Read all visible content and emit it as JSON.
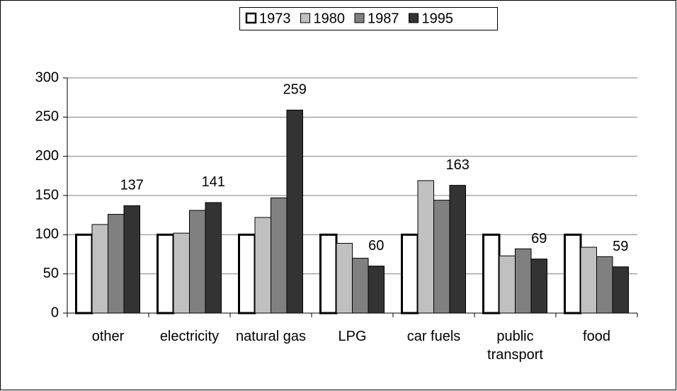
{
  "chart_data": {
    "type": "bar",
    "categories": [
      "other",
      "electricity",
      "natural gas",
      "LPG",
      "car fuels",
      "public transport",
      "food"
    ],
    "series": [
      {
        "name": "1973",
        "color": "#ffffff",
        "values": [
          100,
          100,
          100,
          100,
          100,
          100,
          100
        ]
      },
      {
        "name": "1980",
        "color": "#c0c0c0",
        "values": [
          113,
          102,
          122,
          89,
          169,
          73,
          84
        ]
      },
      {
        "name": "1987",
        "color": "#808080",
        "values": [
          126,
          131,
          147,
          70,
          144,
          82,
          72
        ]
      },
      {
        "name": "1995",
        "color": "#333333",
        "values": [
          137,
          141,
          259,
          60,
          163,
          69,
          59
        ],
        "labels": true
      }
    ],
    "ylim": [
      0,
      300
    ],
    "yticks": [
      0,
      50,
      100,
      150,
      200,
      250,
      300
    ],
    "grid": true,
    "legend": "top"
  }
}
